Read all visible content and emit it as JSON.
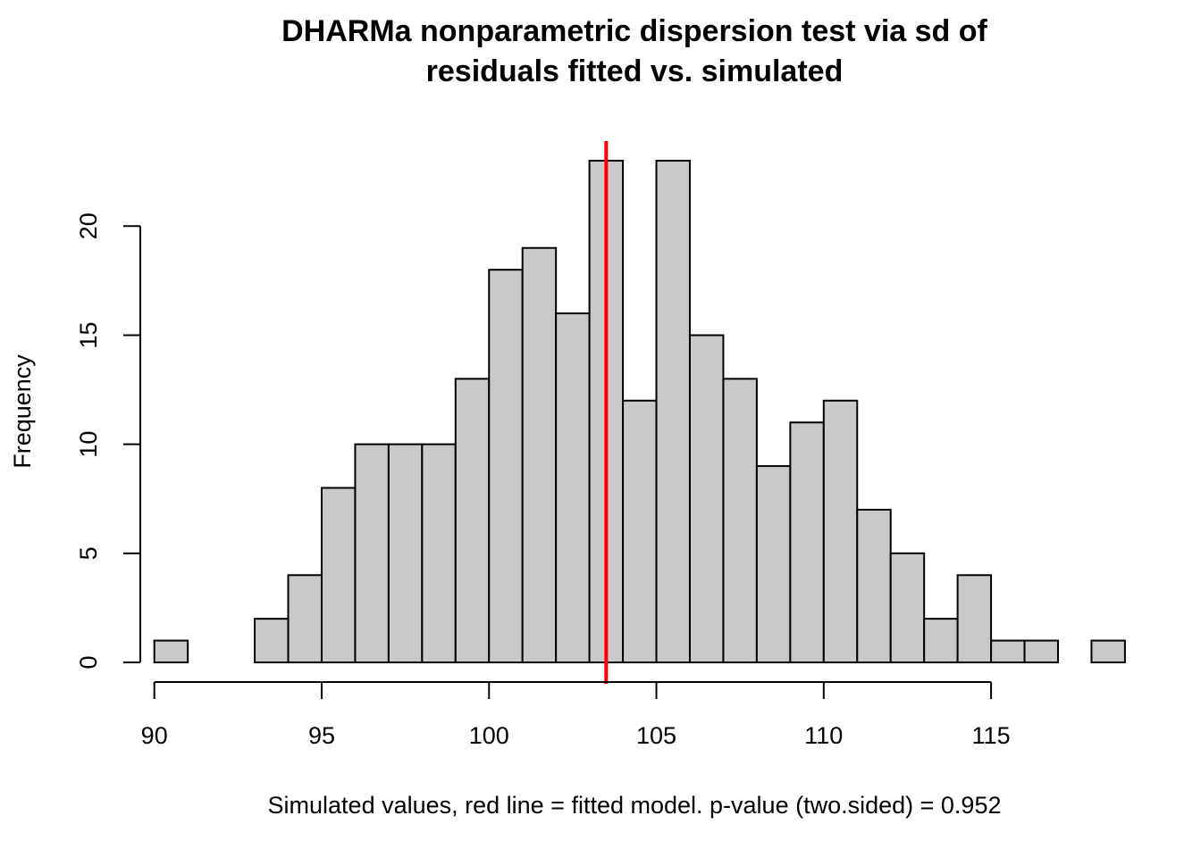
{
  "chart_data": {
    "type": "bar",
    "title_lines": [
      "DHARMa nonparametric dispersion test via sd of",
      "residuals fitted vs. simulated"
    ],
    "xlabel": "Simulated values, red line = fitted model. p-value (two.sided) = 0.952",
    "ylabel": "Frequency",
    "bin_edges": [
      90,
      91,
      92,
      93,
      94,
      95,
      96,
      97,
      98,
      99,
      100,
      101,
      102,
      103,
      104,
      105,
      106,
      107,
      108,
      109,
      110,
      111,
      112,
      113,
      114,
      115,
      116,
      117,
      118,
      119
    ],
    "counts": [
      1,
      0,
      0,
      2,
      4,
      8,
      10,
      10,
      10,
      13,
      18,
      19,
      16,
      23,
      12,
      23,
      15,
      13,
      9,
      11,
      12,
      7,
      5,
      2,
      4,
      1,
      1,
      0,
      1
    ],
    "x_ticks": [
      90,
      95,
      100,
      105,
      110,
      115
    ],
    "x_tick_labels": [
      "90",
      "95",
      "100",
      "105",
      "110",
      "115"
    ],
    "y_ticks": [
      0,
      5,
      10,
      15,
      20
    ],
    "y_tick_labels": [
      "0",
      "5",
      "10",
      "15",
      "20"
    ],
    "xlim": [
      90,
      119
    ],
    "ylim": [
      0,
      23
    ],
    "fitted_value": 103.5,
    "colors": {
      "bar_fill": "#c9c9c9",
      "bar_stroke": "#000000",
      "fitted_line": "#ff0000"
    },
    "grid": false
  }
}
